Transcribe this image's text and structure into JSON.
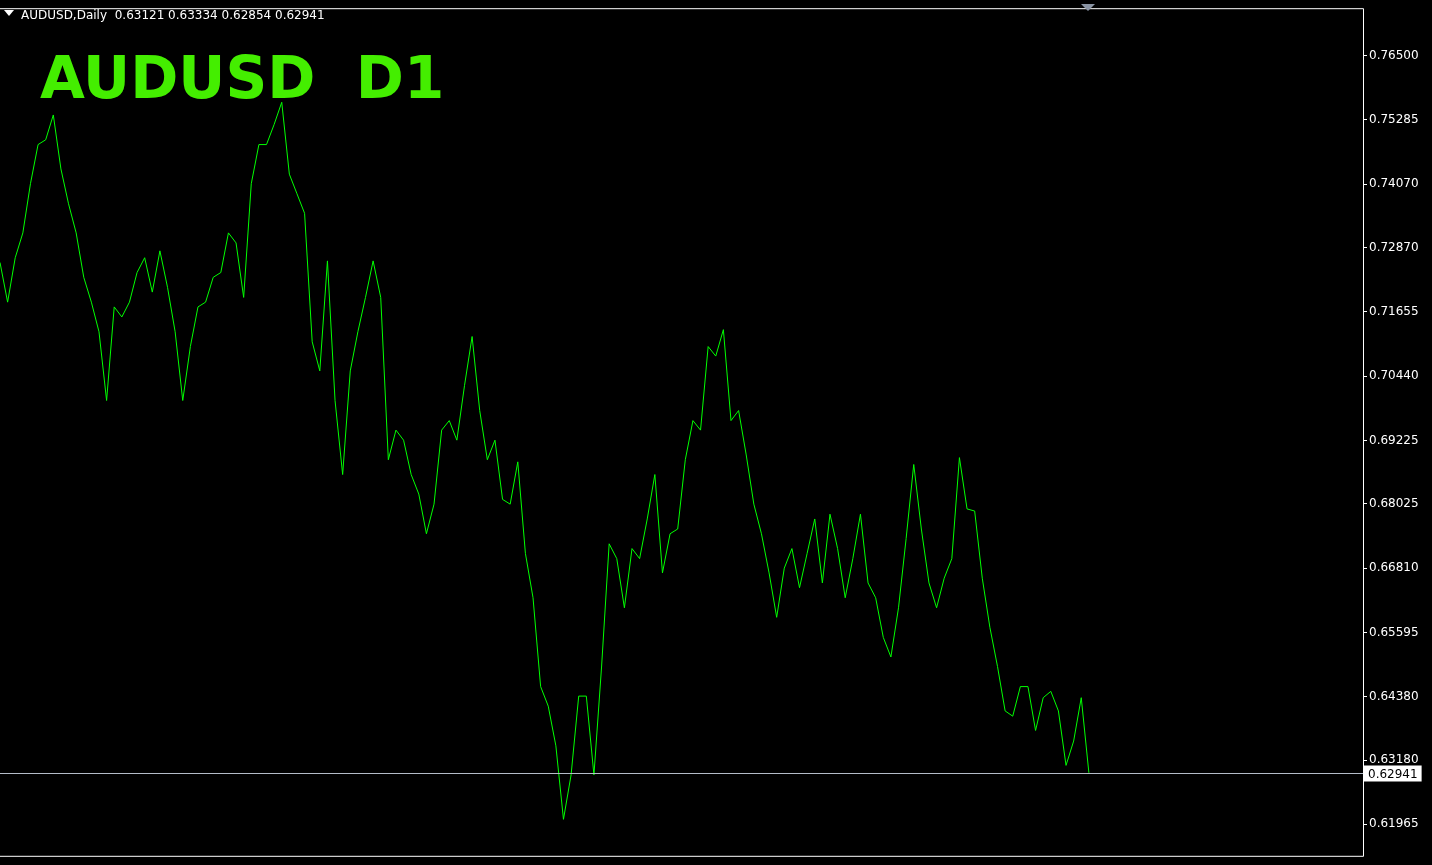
{
  "chart_data": {
    "type": "line",
    "title": "AUDUSD  D1",
    "subtitle": "AUDUSD,Daily  0.63121 0.63334 0.62854 0.62941",
    "categories": [
      null,
      null,
      null,
      null,
      null,
      null,
      null,
      null,
      null,
      null,
      null,
      null,
      null,
      null,
      null,
      null,
      null,
      null,
      null,
      null,
      null,
      null,
      null,
      null,
      null,
      null,
      null,
      null,
      null,
      null,
      null,
      null,
      null,
      null,
      null,
      null,
      null,
      null,
      null,
      null,
      null,
      null,
      null,
      null,
      null,
      null,
      null,
      null,
      null,
      null,
      null,
      null,
      null,
      null,
      null,
      null,
      null,
      null,
      null,
      null,
      null,
      null,
      null,
      null,
      null,
      null,
      null,
      null,
      null,
      null,
      null,
      null,
      null,
      null,
      null,
      null,
      null,
      null,
      null,
      null,
      null,
      null,
      null,
      null,
      null,
      null,
      null,
      null,
      null,
      null,
      null,
      null,
      null,
      null,
      null,
      null,
      null,
      null,
      null,
      null,
      null,
      null,
      null,
      null,
      null,
      null,
      null,
      null,
      null,
      null,
      null,
      null,
      null,
      null,
      null,
      null,
      null,
      null,
      null,
      null,
      null,
      null,
      null,
      null,
      null,
      null,
      null,
      null,
      null,
      null,
      null,
      null,
      null,
      null,
      null,
      null,
      null,
      null,
      null,
      null,
      null,
      null,
      null,
      null,
      null,
      null,
      null,
      null,
      null,
      null,
      null,
      null,
      null,
      null,
      null,
      null,
      null,
      null,
      null,
      null,
      null,
      null,
      null,
      null,
      null,
      null,
      null,
      null,
      null,
      null,
      null,
      null,
      null,
      null,
      null,
      null,
      null,
      null,
      null,
      null
    ],
    "series": [
      {
        "color": "#00ff00",
        "values": [
          0.7259,
          0.7184,
          0.7268,
          0.7315,
          0.7408,
          0.7482,
          0.7491,
          0.7538,
          0.7436,
          0.737,
          0.7315,
          0.7231,
          0.7184,
          0.7128,
          0.6998,
          0.7175,
          0.7156,
          0.7184,
          0.724,
          0.7268,
          0.7203,
          0.7281,
          0.7212,
          0.7128,
          0.6998,
          0.71,
          0.7175,
          0.7184,
          0.7231,
          0.724,
          0.7315,
          0.7296,
          0.7193,
          0.7408,
          0.7482,
          0.7482,
          0.752,
          0.7562,
          0.7426,
          0.7389,
          0.7352,
          0.7109,
          0.7054,
          0.7262,
          0.6998,
          0.6858,
          0.7054,
          0.7128,
          0.7193,
          0.7262,
          0.7193,
          0.6886,
          0.6942,
          0.6923,
          0.6858,
          0.6821,
          0.6746,
          0.6802,
          0.6942,
          0.696,
          0.6923,
          0.7026,
          0.7119,
          0.6979,
          0.6886,
          0.6923,
          0.6811,
          0.6802,
          0.6882,
          0.6709,
          0.6625,
          0.6457,
          0.642,
          0.6345,
          0.6206,
          0.629,
          0.6439,
          0.6439,
          0.629,
          0.6494,
          0.6727,
          0.6699,
          0.6606,
          0.6718,
          0.6699,
          0.6774,
          0.6858,
          0.6672,
          0.6746,
          0.6755,
          0.6886,
          0.696,
          0.6942,
          0.71,
          0.7082,
          0.7132,
          0.696,
          0.6979,
          0.6895,
          0.6802,
          0.6746,
          0.6672,
          0.6588,
          0.6681,
          0.6718,
          0.6644,
          0.6709,
          0.6774,
          0.6653,
          0.6783,
          0.6718,
          0.6625,
          0.6699,
          0.6783,
          0.6653,
          0.6625,
          0.655,
          0.6513,
          0.6606,
          0.6737,
          0.6877,
          0.6755,
          0.6653,
          0.6606,
          0.6662,
          0.6699,
          0.689,
          0.6793,
          0.6789,
          0.6662,
          0.6569,
          0.6495,
          0.6411,
          0.6401,
          0.6457,
          0.6457,
          0.6374,
          0.6436,
          0.6448,
          0.6411,
          0.6308,
          0.6354,
          0.6436,
          0.6294,
          null,
          null,
          null,
          null,
          null,
          null,
          null,
          null,
          null,
          null,
          null,
          null,
          null,
          null,
          null,
          null,
          null,
          null,
          null,
          null,
          null,
          null,
          null,
          null,
          null,
          null,
          null,
          null,
          null,
          null,
          null,
          null,
          null,
          null,
          null,
          null
        ]
      }
    ],
    "ylim": [
      0.6137,
      0.7738
    ],
    "yticks": [
      {
        "value": 0.765,
        "label": "0.76500"
      },
      0.75285,
      {
        "value": 0.7407,
        "label": "0.74070"
      },
      {
        "value": 0.7287,
        "label": "0.72870"
      },
      0.71655,
      {
        "value": 0.7044,
        "label": "0.70440"
      },
      0.69225,
      0.68025,
      {
        "value": 0.6681,
        "label": "0.66810"
      },
      0.65595,
      {
        "value": 0.6438,
        "label": "0.64380"
      },
      {
        "value": 0.6318,
        "label": "0.63180"
      },
      0.61965
    ],
    "ref_lines": [
      {
        "axis": "y",
        "value": 0.62941,
        "label": "0.62941",
        "color": "#b4bcc8"
      }
    ],
    "marker": "none",
    "tick_labels": "y",
    "legend": false
  }
}
